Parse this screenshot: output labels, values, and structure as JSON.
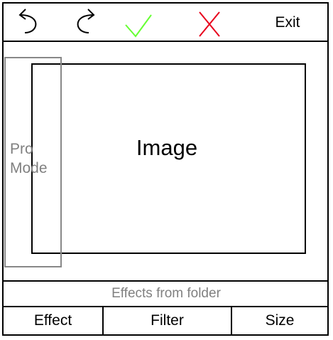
{
  "toolbar": {
    "undo_icon": "undo-icon",
    "redo_icon": "redo-icon",
    "confirm_icon": "check-icon",
    "cancel_icon": "close-icon",
    "exit_label": "Exit",
    "confirm_color": "#66ff33",
    "cancel_color": "#e8001c"
  },
  "canvas": {
    "image_label": "Image"
  },
  "pro_mode": {
    "line1": "Pro",
    "line2": "Mode"
  },
  "effects_label": "Effects from folder",
  "tabs": [
    {
      "label": "Effect"
    },
    {
      "label": "Filter"
    },
    {
      "label": "Size"
    }
  ]
}
